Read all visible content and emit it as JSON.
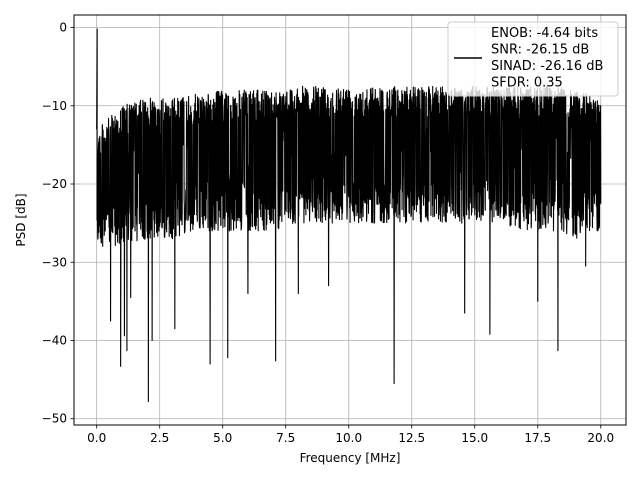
{
  "chart_data": {
    "type": "line",
    "title": "",
    "xlabel": "Frequency [MHz]",
    "ylabel": "PSD [dB]",
    "xlim": [
      -0.9,
      21.0
    ],
    "ylim": [
      -50.8,
      1.6
    ],
    "xticks": [
      0.0,
      2.5,
      5.0,
      7.5,
      10.0,
      12.5,
      15.0,
      17.5,
      20.0
    ],
    "xtick_labels": [
      "0.0",
      "2.5",
      "5.0",
      "7.5",
      "10.0",
      "12.5",
      "15.0",
      "17.5",
      "20.0"
    ],
    "yticks": [
      0,
      -10,
      -20,
      -30,
      -40,
      -50
    ],
    "ytick_labels": [
      "0",
      "−10",
      "−20",
      "−30",
      "−40",
      "−50"
    ],
    "grid": true,
    "legend_position": "upper-right",
    "legend_entries": [
      "ENOB: -4.64 bits",
      "SNR: -26.15 dB",
      "SINAD: -26.16 dB",
      "SFDR: 0.35"
    ],
    "series": [
      {
        "color": "#000000",
        "x_start": 0.0,
        "x_end": 20.0,
        "peak": {
          "x": 0.02,
          "y": -0.2
        },
        "upper_envelope": [
          -13,
          -10,
          -9,
          -9,
          -8.5,
          -8,
          -8,
          -8,
          -7.5,
          -7.5,
          -7.5,
          -7.5,
          -7.5,
          -7.5,
          -7.5,
          -7.5,
          -7.5,
          -7.5,
          -7.5,
          -8,
          -9
        ],
        "typical_lower": [
          -28,
          -28,
          -27,
          -27,
          -26,
          -26,
          -26,
          -26,
          -25,
          -25,
          -25,
          -25,
          -25,
          -25,
          -25,
          -25,
          -25,
          -26,
          -26,
          -27,
          -26
        ],
        "notable_dips": [
          {
            "x": 0.55,
            "y": -37.5
          },
          {
            "x": 0.95,
            "y": -43.3
          },
          {
            "x": 1.1,
            "y": -39.4
          },
          {
            "x": 1.2,
            "y": -41.3
          },
          {
            "x": 1.35,
            "y": -34.5
          },
          {
            "x": 2.05,
            "y": -47.8
          },
          {
            "x": 2.2,
            "y": -40.0
          },
          {
            "x": 3.1,
            "y": -38.5
          },
          {
            "x": 4.5,
            "y": -43.0
          },
          {
            "x": 5.2,
            "y": -42.2
          },
          {
            "x": 6.0,
            "y": -34.0
          },
          {
            "x": 7.1,
            "y": -42.6
          },
          {
            "x": 8.0,
            "y": -34.0
          },
          {
            "x": 9.2,
            "y": -33.0
          },
          {
            "x": 11.8,
            "y": -45.5
          },
          {
            "x": 14.6,
            "y": -36.5
          },
          {
            "x": 15.6,
            "y": -39.2
          },
          {
            "x": 17.5,
            "y": -35.0
          },
          {
            "x": 18.3,
            "y": -41.3
          },
          {
            "x": 19.4,
            "y": -30.5
          }
        ]
      }
    ]
  }
}
